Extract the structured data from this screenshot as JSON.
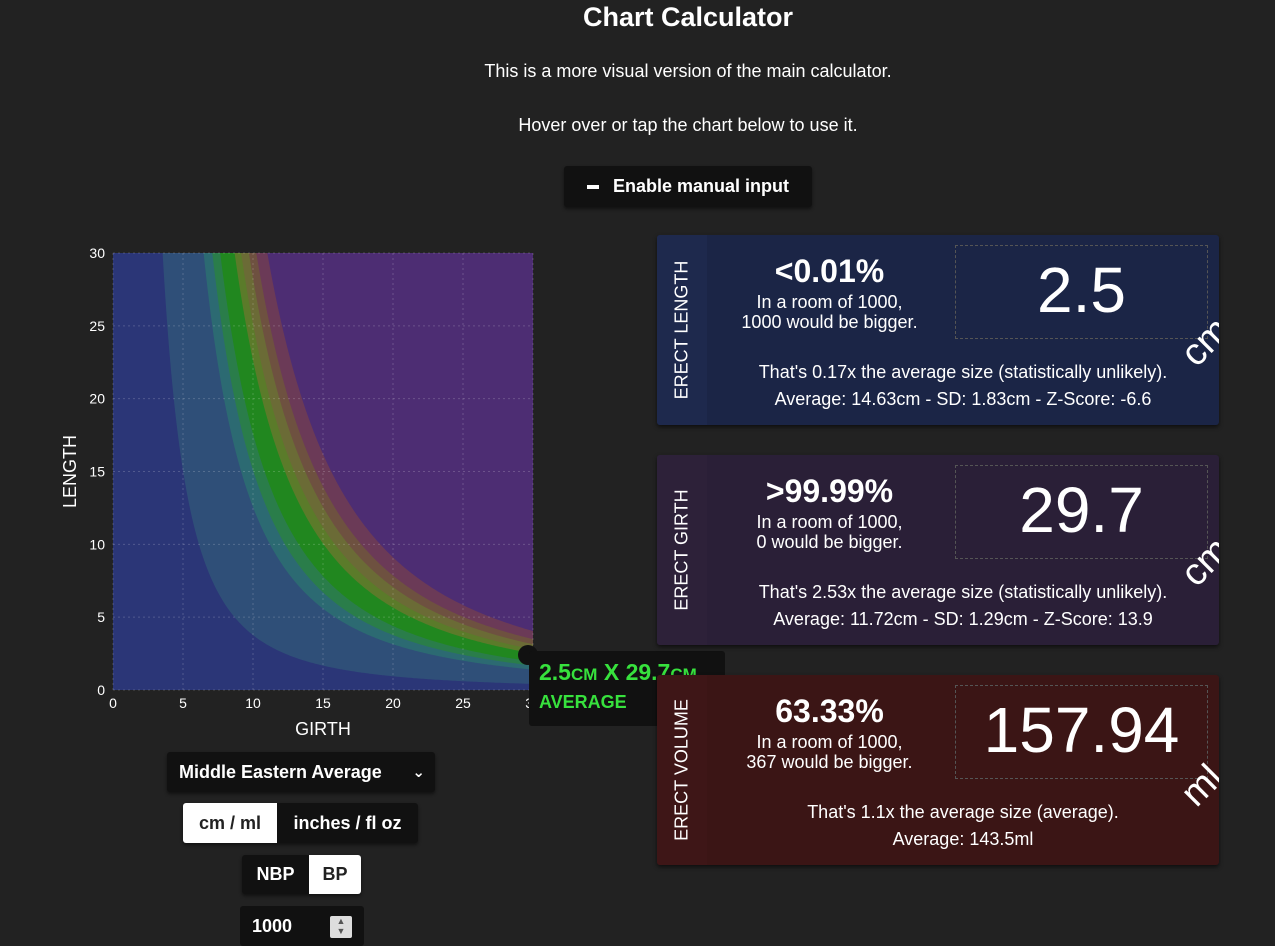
{
  "header": {
    "title": "Chart Calculator",
    "line1": "This is a more visual version of the main calculator.",
    "line2": "Hover over or tap the chart below to use it.",
    "manual_button": "Enable manual input"
  },
  "tooltip": {
    "dim_a": "2.5",
    "dim_a_unit": "CM",
    "sep": " X ",
    "dim_b": "29.7",
    "dim_b_unit": "CM",
    "category": "AVERAGE"
  },
  "controls": {
    "dataset_selected": "Middle Eastern Average",
    "units": [
      "cm / ml",
      "inches / fl oz"
    ],
    "units_selected": 0,
    "bp_options": [
      "NBP",
      "BP"
    ],
    "bp_selected": 1,
    "room_size": "1000"
  },
  "cards": [
    {
      "label": "ERECT LENGTH",
      "percentile": "<0.01%",
      "room_line1": "In a room of 1000,",
      "room_line2": "1000 would be bigger.",
      "value": "2.5",
      "unit": "cm",
      "desc_line1": "That's 0.17x the average size (statistically unlikely).",
      "desc_line2": "Average: 14.63cm - SD: 1.83cm - Z-Score: -6.6",
      "bg": "#1b2546",
      "side_bg": "#1e294d"
    },
    {
      "label": "ERECT GIRTH",
      "percentile": ">99.99%",
      "room_line1": "In a room of 1000,",
      "room_line2": "0 would be bigger.",
      "value": "29.7",
      "unit": "cm",
      "desc_line1": "That's 2.53x the average size (statistically unlikely).",
      "desc_line2": "Average: 11.72cm - SD: 1.29cm - Z-Score: 13.9",
      "bg": "#2a1f37",
      "side_bg": "#2d2139"
    },
    {
      "label": "ERECT VOLUME",
      "percentile": "63.33%",
      "room_line1": "In a room of 1000,",
      "room_line2": "367 would be bigger.",
      "value": "157.94",
      "unit": "ml",
      "desc_line1": "That's 1.1x the average size (average).",
      "desc_line2": "Average: 143.5ml",
      "bg": "#3b1515",
      "side_bg": "#3e1617"
    }
  ],
  "chart_data": {
    "type": "area",
    "xlabel": "GIRTH",
    "ylabel": "LENGTH",
    "xlim": [
      0,
      30
    ],
    "ylim": [
      0,
      30
    ],
    "xticks": [
      0,
      5,
      10,
      15,
      20,
      25,
      30
    ],
    "yticks": [
      0,
      5,
      10,
      15,
      20,
      25,
      30
    ],
    "grid": true,
    "series": [
      {
        "volume_ml": 30,
        "color": "#2b3677"
      },
      {
        "volume_ml": 100,
        "color": "#2f4f78"
      },
      {
        "volume_ml": 120,
        "color": "#2c6a72"
      },
      {
        "volume_ml": 140,
        "color": "#2a7d4a"
      },
      {
        "volume_ml": 180,
        "color": "#21871f"
      },
      {
        "volume_ml": 200,
        "color": "#5b7b2a"
      },
      {
        "volume_ml": 225,
        "color": "#6b6b36"
      },
      {
        "volume_ml": 250,
        "color": "#6e5140"
      },
      {
        "volume_ml": 290,
        "color": "#6b3a57"
      }
    ],
    "top_band_color": "#4d2d73",
    "point": {
      "x": 29.7,
      "y": 2.5
    }
  }
}
